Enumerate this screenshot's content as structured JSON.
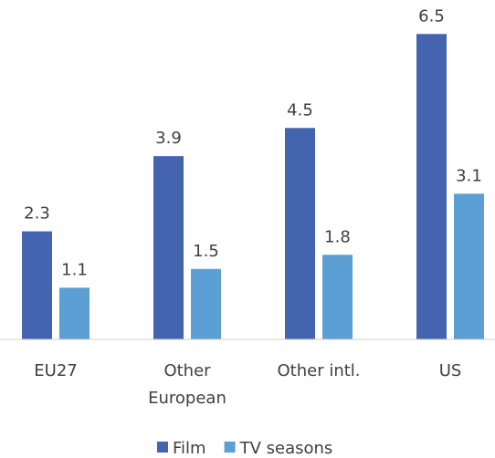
{
  "chart_data": {
    "type": "bar",
    "categories": [
      "EU27",
      "Other European",
      "Other intl.",
      "US"
    ],
    "series": [
      {
        "name": "Film",
        "color": "#4564b0",
        "values": [
          2.3,
          3.9,
          4.5,
          6.5
        ]
      },
      {
        "name": "TV seasons",
        "color": "#5b9fd4",
        "values": [
          1.1,
          1.5,
          1.8,
          3.1
        ]
      }
    ],
    "ylim": [
      0,
      7
    ],
    "legend": "bottom"
  }
}
